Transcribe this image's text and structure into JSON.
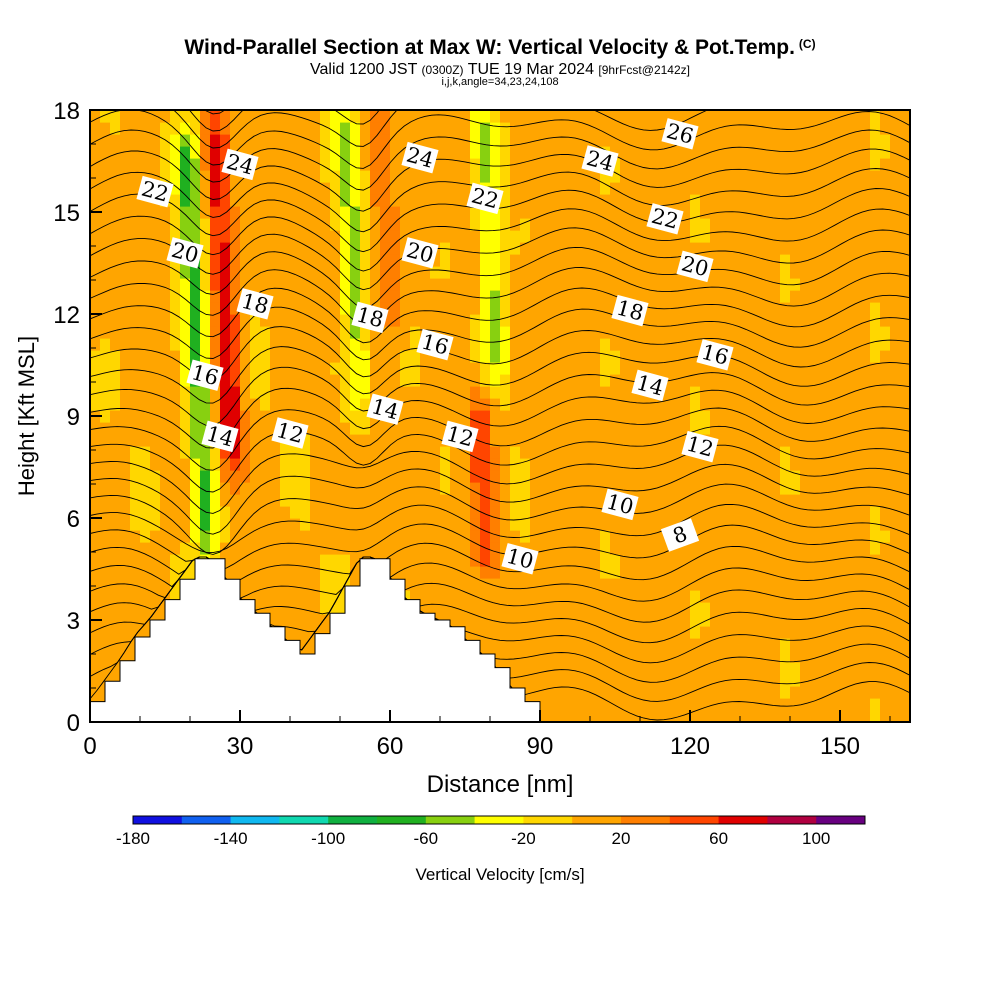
{
  "header": {
    "title": "Wind-Parallel Section at Max W: Vertical Velocity & Pot.Temp.",
    "title_mark": "(C)",
    "valid_prefix": "Valid 1200 JST",
    "valid_utc": "(0300Z)",
    "valid_day": "TUE 19 Mar 2024",
    "forecast_note": "[9hrFcst@2142z]",
    "grid_info": "i,j,k,angle=34,23,24,108"
  },
  "chart_data": {
    "type": "heatmap",
    "title": "Wind-Parallel Section at Max W: Vertical Velocity & Pot.Temp.",
    "xlabel": "Distance [nm]",
    "ylabel": "Height [Kft MSL]",
    "xlim": [
      0,
      164
    ],
    "ylim": [
      0,
      18
    ],
    "x_ticks": [
      0,
      30,
      60,
      90,
      120,
      150
    ],
    "y_ticks": [
      0,
      3,
      6,
      9,
      12,
      15,
      18
    ],
    "colorbar": {
      "label": "Vertical Velocity [cm/s]",
      "tick_labels": [
        "-180",
        "-140",
        "-100",
        "-60",
        "-20",
        "20",
        "60",
        "100"
      ],
      "range": [
        -180,
        120
      ],
      "step": 20,
      "colors": [
        "#1010e0",
        "#1060f0",
        "#10b8f0",
        "#10d8b0",
        "#10b040",
        "#20b020",
        "#88d010",
        "#ffff00",
        "#ffd700",
        "#ffa500",
        "#ff7f00",
        "#ff4500",
        "#e00000",
        "#b00040",
        "#680080"
      ]
    },
    "vertical_velocity_features": [
      {
        "type": "updraft",
        "x": 28,
        "height_range": [
          7,
          18
        ],
        "max_cm_s": 70
      },
      {
        "type": "downdraft",
        "x": 22,
        "height_range": [
          4,
          18
        ],
        "min_cm_s": -70
      },
      {
        "type": "downdraft",
        "x": 54,
        "height_range": [
          9,
          18
        ],
        "min_cm_s": -50
      },
      {
        "type": "downdraft",
        "x": 82,
        "height_range": [
          10,
          18
        ],
        "min_cm_s": -50
      },
      {
        "type": "updraft",
        "x": 78,
        "height_range": [
          5,
          9
        ],
        "max_cm_s": 50
      },
      {
        "type": "updraft",
        "x": 61,
        "height_range": [
          12,
          18
        ],
        "max_cm_s": 35
      }
    ],
    "terrain": {
      "x": [
        0,
        3,
        6,
        9,
        12,
        15,
        18,
        21,
        24,
        27,
        30,
        33,
        36,
        39,
        42,
        45,
        48,
        51,
        54,
        57,
        60,
        63,
        66,
        69,
        72,
        75,
        78,
        81,
        84,
        87,
        90
      ],
      "height_kft": [
        0.6,
        1.2,
        1.8,
        2.5,
        3.0,
        3.6,
        4.2,
        4.8,
        4.8,
        4.2,
        3.6,
        3.2,
        2.8,
        2.4,
        2.0,
        2.6,
        3.2,
        4.0,
        4.8,
        4.8,
        4.2,
        3.6,
        3.2,
        3.0,
        2.8,
        2.4,
        2.0,
        1.6,
        1.0,
        0.6,
        0.3
      ]
    },
    "theta_contour_labels": [
      {
        "value": "22",
        "x": 13,
        "y": 15.6
      },
      {
        "value": "24",
        "x": 30,
        "y": 16.4
      },
      {
        "value": "20",
        "x": 19,
        "y": 13.8
      },
      {
        "value": "18",
        "x": 33,
        "y": 12.3
      },
      {
        "value": "16",
        "x": 23,
        "y": 10.2
      },
      {
        "value": "14",
        "x": 26,
        "y": 8.4
      },
      {
        "value": "12",
        "x": 40,
        "y": 8.5
      },
      {
        "value": "24",
        "x": 66,
        "y": 16.6
      },
      {
        "value": "22",
        "x": 79,
        "y": 15.4
      },
      {
        "value": "20",
        "x": 66,
        "y": 13.8
      },
      {
        "value": "18",
        "x": 56,
        "y": 11.9
      },
      {
        "value": "16",
        "x": 69,
        "y": 11.1
      },
      {
        "value": "14",
        "x": 59,
        "y": 9.2
      },
      {
        "value": "12",
        "x": 74,
        "y": 8.4
      },
      {
        "value": "10",
        "x": 86,
        "y": 4.8
      },
      {
        "value": "26",
        "x": 118,
        "y": 17.3
      },
      {
        "value": "24",
        "x": 102,
        "y": 16.5
      },
      {
        "value": "22",
        "x": 115,
        "y": 14.8
      },
      {
        "value": "20",
        "x": 121,
        "y": 13.4
      },
      {
        "value": "18",
        "x": 108,
        "y": 12.1
      },
      {
        "value": "16",
        "x": 125,
        "y": 10.8
      },
      {
        "value": "14",
        "x": 112,
        "y": 9.9
      },
      {
        "value": "12",
        "x": 122,
        "y": 8.1
      },
      {
        "value": "10",
        "x": 106,
        "y": 6.4
      },
      {
        "value": "8",
        "x": 118,
        "y": 5.5
      }
    ],
    "grid": false
  }
}
